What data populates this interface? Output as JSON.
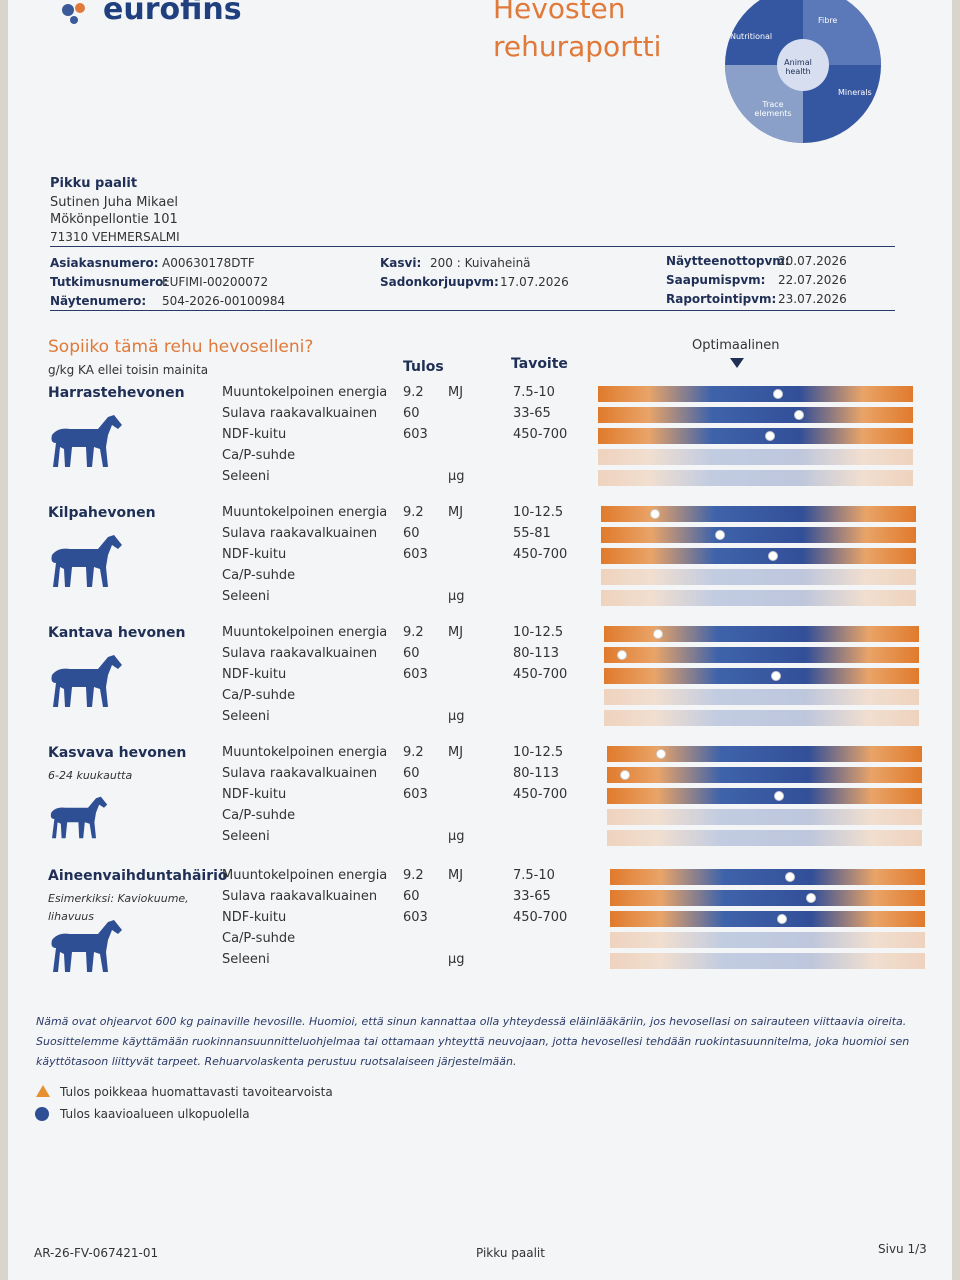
{
  "header": {
    "logo": "eurofins",
    "title": [
      "Hevosten",
      "rehuraportti"
    ],
    "puzzle": [
      "Nutritional",
      "Fibre",
      "Animal health",
      "Minerals",
      "Trace elements"
    ]
  },
  "customer": {
    "name": "Pikku paalit",
    "person": "Sutinen Juha Mikael",
    "street": "Mökönpellontie 101",
    "postal": "71310 VEHMERSALMI"
  },
  "info": [
    [
      {
        "label": "Asiakasnumero:",
        "value": "A00630178DTF"
      },
      {
        "label": "Tutkimusnumero:",
        "value": "EUFIMI-00200072"
      },
      {
        "label": "Näytenumero:",
        "value": "504-2026-00100984"
      }
    ],
    [
      {
        "label": "Kasvi:",
        "value": "200 : Kuivaheinä"
      },
      {
        "label": "Sadonkorjuupvm:",
        "value": "17.07.2026"
      }
    ],
    [
      {
        "label": "Näytteenottopvm:",
        "value": "20.07.2026"
      },
      {
        "label": "Saapumispvm:",
        "value": "22.07.2026"
      },
      {
        "label": "Raportointipvm:",
        "value": "23.07.2026"
      }
    ]
  ],
  "section": {
    "title": "Sopiiko tämä rehu hevoselleni?",
    "unit_note": "g/kg KA ellei toisin mainita",
    "col_result": "Tulos",
    "col_target": "Tavoite",
    "optimal": "Optimaalinen"
  },
  "groups": [
    {
      "name": "Harrastehevonen",
      "rows": [
        {
          "label": "Muuntokelpoinen energia",
          "result": 9.2,
          "unit": "MJ",
          "target": "7.5-10"
        },
        {
          "label": "Sulava raakavalkuainen",
          "result": 60,
          "target": "33-65"
        },
        {
          "label": "NDF-kuitu",
          "result": 603,
          "target": "450-700"
        },
        {
          "label": "Ca/P-suhde"
        },
        {
          "label": "Seleeni",
          "unit": "µg"
        }
      ]
    },
    {
      "name": "Kilpahevonen",
      "rows": [
        {
          "label": "Muuntokelpoinen energia",
          "result": 9.2,
          "unit": "MJ",
          "target": "10-12.5"
        },
        {
          "label": "Sulava raakavalkuainen",
          "result": 60,
          "target": "55-81"
        },
        {
          "label": "NDF-kuitu",
          "result": 603,
          "target": "450-700"
        },
        {
          "label": "Ca/P-suhde"
        },
        {
          "label": "Seleeni",
          "unit": "µg"
        }
      ]
    },
    {
      "name": "Kantava hevonen",
      "rows": [
        {
          "label": "Muuntokelpoinen energia",
          "result": 9.2,
          "unit": "MJ",
          "target": "10-12.5"
        },
        {
          "label": "Sulava raakavalkuainen",
          "result": 60,
          "target": "80-113"
        },
        {
          "label": "NDF-kuitu",
          "result": 603,
          "target": "450-700"
        },
        {
          "label": "Ca/P-suhde"
        },
        {
          "label": "Seleeni",
          "unit": "µg"
        }
      ]
    },
    {
      "name": "Kasvava hevonen",
      "subtitle": "6-24 kuukautta",
      "rows": [
        {
          "label": "Muuntokelpoinen energia",
          "result": 9.2,
          "unit": "MJ",
          "target": "10-12.5"
        },
        {
          "label": "Sulava raakavalkuainen",
          "result": 60,
          "target": "80-113"
        },
        {
          "label": "NDF-kuitu",
          "result": 603,
          "target": "450-700"
        },
        {
          "label": "Ca/P-suhde"
        },
        {
          "label": "Seleeni",
          "unit": "µg"
        }
      ]
    },
    {
      "name": "Aineenvaihduntahäiriö",
      "subtitle": "Esimerkiksi: Kaviokuume, lihavuus",
      "rows": [
        {
          "label": "Muuntokelpoinen energia",
          "result": 9.2,
          "unit": "MJ",
          "target": "7.5-10"
        },
        {
          "label": "Sulava raakavalkuainen",
          "result": 60,
          "target": "33-65"
        },
        {
          "label": "NDF-kuitu",
          "result": 603,
          "target": "450-700"
        },
        {
          "label": "Ca/P-suhde"
        },
        {
          "label": "Seleeni",
          "unit": "µg"
        }
      ]
    }
  ],
  "note": "Nämä ovat ohjearvot 600 kg painaville hevosille. Huomioi, että sinun kannattaa olla yhteydessä eläinlääkäriin, jos hevosellasi on sairauteen viittaavia oireita. Suosittelemme käyttämään ruokinnansuunnitteluohjelmaa tai ottamaan yhteyttä neuvojaan, jotta hevosellesi tehdään ruokintasuunnitelma, joka huomioi sen käyttötasoon liittyvät tarpeet. Rehuarvolaskenta perustuu ruotsalaiseen järjestelmään.",
  "legend": [
    "Tulos poikkeaa huomattavasti tavoitearvoista",
    "Tulos kaavioalueen ulkopuolella"
  ],
  "footer": {
    "code": "AR-26-FV-067421-01",
    "customer": "Pikku paalit",
    "page": "Sivu 1/3"
  }
}
